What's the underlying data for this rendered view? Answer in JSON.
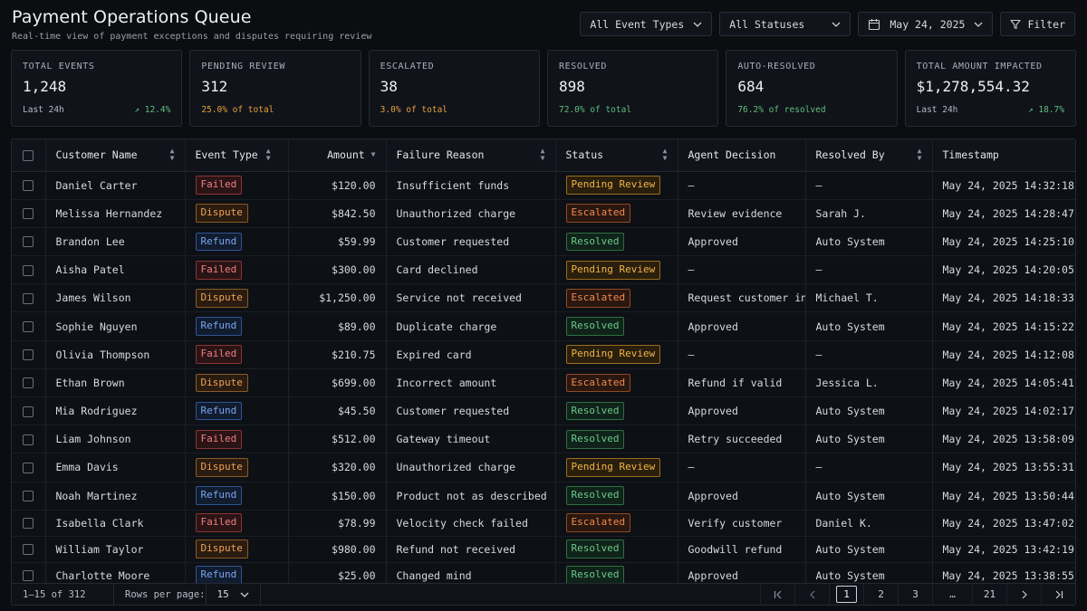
{
  "header": {
    "title": "Payment Operations Queue",
    "subtitle": "Real-time view of payment exceptions and disputes requiring review"
  },
  "toolbar": {
    "event_types": "All Event Types",
    "statuses": "All Statuses",
    "date": "May 24, 2025",
    "filter": "Filter"
  },
  "kpis": [
    {
      "label": "TOTAL EVENTS",
      "value": "1,248",
      "foot_left": "Last 24h",
      "foot_right": "↗ 12.4%",
      "tone": "green"
    },
    {
      "label": "PENDING REVIEW",
      "value": "312",
      "foot_left": "25.0% of total",
      "foot_right": "",
      "tone": "orange"
    },
    {
      "label": "ESCALATED",
      "value": "38",
      "foot_left": "3.0% of total",
      "foot_right": "",
      "tone": "orange"
    },
    {
      "label": "RESOLVED",
      "value": "898",
      "foot_left": "72.0% of total",
      "foot_right": "",
      "tone": "green"
    },
    {
      "label": "AUTO-RESOLVED",
      "value": "684",
      "foot_left": "76.2% of resolved",
      "foot_right": "",
      "tone": "green"
    },
    {
      "label": "TOTAL AMOUNT IMPACTED",
      "value": "$1,278,554.32",
      "foot_left": "Last 24h",
      "foot_right": "↗ 18.7%",
      "tone": "green"
    }
  ],
  "table": {
    "columns": [
      "Customer Name",
      "Event Type",
      "Amount",
      "Failure Reason",
      "Status",
      "Agent Decision",
      "Resolved By",
      "Timestamp"
    ],
    "rows": [
      {
        "name": "Daniel Carter",
        "type": "Failed",
        "amount": "$120.00",
        "reason": "Insufficient funds",
        "status": "Pending Review",
        "decision": "—",
        "resolved_by": "—",
        "time": "May 24, 2025 14:32:18"
      },
      {
        "name": "Melissa Hernandez",
        "type": "Dispute",
        "amount": "$842.50",
        "reason": "Unauthorized charge",
        "status": "Escalated",
        "decision": "Review evidence",
        "resolved_by": "Sarah J.",
        "time": "May 24, 2025 14:28:47"
      },
      {
        "name": "Brandon Lee",
        "type": "Refund",
        "amount": "$59.99",
        "reason": "Customer requested",
        "status": "Resolved",
        "decision": "Approved",
        "resolved_by": "Auto System",
        "time": "May 24, 2025 14:25:10"
      },
      {
        "name": "Aisha Patel",
        "type": "Failed",
        "amount": "$300.00",
        "reason": "Card declined",
        "status": "Pending Review",
        "decision": "—",
        "resolved_by": "—",
        "time": "May 24, 2025 14:20:05"
      },
      {
        "name": "James Wilson",
        "type": "Dispute",
        "amount": "$1,250.00",
        "reason": "Service not received",
        "status": "Escalated",
        "decision": "Request customer info",
        "resolved_by": "Michael T.",
        "time": "May 24, 2025 14:18:33"
      },
      {
        "name": "Sophie Nguyen",
        "type": "Refund",
        "amount": "$89.00",
        "reason": "Duplicate charge",
        "status": "Resolved",
        "decision": "Approved",
        "resolved_by": "Auto System",
        "time": "May 24, 2025 14:15:22"
      },
      {
        "name": "Olivia Thompson",
        "type": "Failed",
        "amount": "$210.75",
        "reason": "Expired card",
        "status": "Pending Review",
        "decision": "—",
        "resolved_by": "—",
        "time": "May 24, 2025 14:12:08"
      },
      {
        "name": "Ethan Brown",
        "type": "Dispute",
        "amount": "$699.00",
        "reason": "Incorrect amount",
        "status": "Escalated",
        "decision": "Refund if valid",
        "resolved_by": "Jessica L.",
        "time": "May 24, 2025 14:05:41"
      },
      {
        "name": "Mia Rodriguez",
        "type": "Refund",
        "amount": "$45.50",
        "reason": "Customer requested",
        "status": "Resolved",
        "decision": "Approved",
        "resolved_by": "Auto System",
        "time": "May 24, 2025 14:02:17"
      },
      {
        "name": "Liam Johnson",
        "type": "Failed",
        "amount": "$512.00",
        "reason": "Gateway timeout",
        "status": "Resolved",
        "decision": "Retry succeeded",
        "resolved_by": "Auto System",
        "time": "May 24, 2025 13:58:09"
      },
      {
        "name": "Emma Davis",
        "type": "Dispute",
        "amount": "$320.00",
        "reason": "Unauthorized charge",
        "status": "Pending Review",
        "decision": "—",
        "resolved_by": "—",
        "time": "May 24, 2025 13:55:31"
      },
      {
        "name": "Noah Martinez",
        "type": "Refund",
        "amount": "$150.00",
        "reason": "Product not as described",
        "status": "Resolved",
        "decision": "Approved",
        "resolved_by": "Auto System",
        "time": "May 24, 2025 13:50:44"
      },
      {
        "name": "Isabella Clark",
        "type": "Failed",
        "amount": "$78.99",
        "reason": "Velocity check failed",
        "status": "Escalated",
        "decision": "Verify customer",
        "resolved_by": "Daniel K.",
        "time": "May 24, 2025 13:47:02"
      },
      {
        "name": "William Taylor",
        "type": "Dispute",
        "amount": "$980.00",
        "reason": "Refund not received",
        "status": "Resolved",
        "decision": "Goodwill refund",
        "resolved_by": "Auto System",
        "time": "May 24, 2025 13:42:19"
      },
      {
        "name": "Charlotte Moore",
        "type": "Refund",
        "amount": "$25.00",
        "reason": "Changed mind",
        "status": "Resolved",
        "decision": "Approved",
        "resolved_by": "Auto System",
        "time": "May 24, 2025 13:38:55"
      }
    ]
  },
  "footer": {
    "range": "1–15 of 312",
    "rows_label": "Rows per page:",
    "rows_value": "15",
    "pages": [
      "1",
      "2",
      "3",
      "…",
      "21"
    ],
    "active_page": "1"
  }
}
